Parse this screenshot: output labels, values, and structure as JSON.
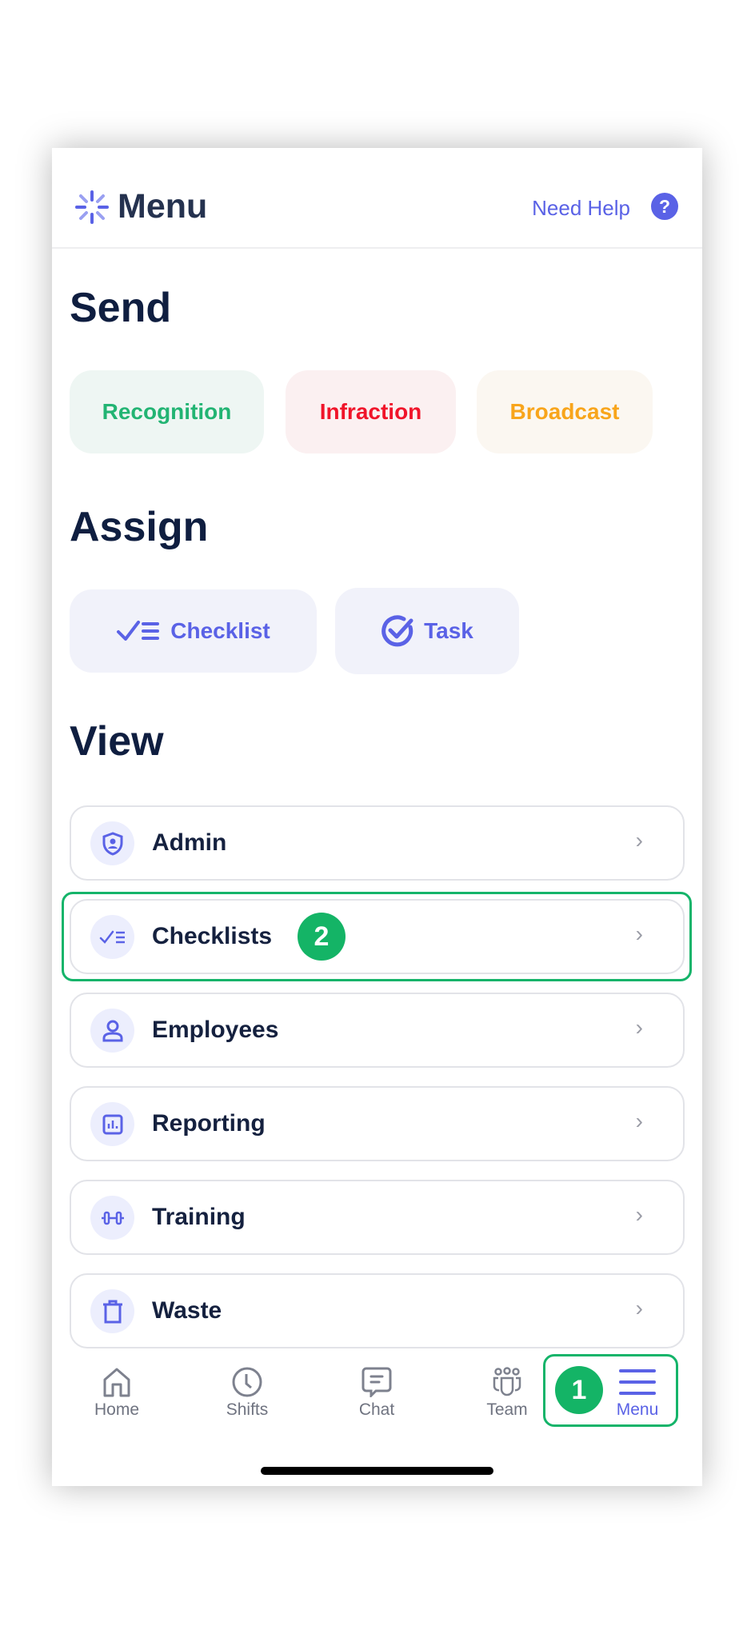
{
  "header": {
    "title": "Menu",
    "help_label": "Need Help",
    "help_icon": "?"
  },
  "send": {
    "heading": "Send",
    "buttons": [
      {
        "label": "Recognition",
        "color": "#22b473"
      },
      {
        "label": "Infraction",
        "color": "#f0142a"
      },
      {
        "label": "Broadcast",
        "color": "#f8a51b"
      }
    ]
  },
  "assign": {
    "heading": "Assign",
    "buttons": [
      {
        "label": "Checklist",
        "icon": "checklist-icon"
      },
      {
        "label": "Task",
        "icon": "check-circle-icon"
      }
    ]
  },
  "view": {
    "heading": "View",
    "items": [
      {
        "label": "Admin",
        "icon": "shield-user-icon"
      },
      {
        "label": "Checklists",
        "icon": "checklist-icon"
      },
      {
        "label": "Employees",
        "icon": "user-icon"
      },
      {
        "label": "Reporting",
        "icon": "chart-icon"
      },
      {
        "label": "Training",
        "icon": "dumbbell-icon"
      },
      {
        "label": "Waste",
        "icon": "trash-icon"
      }
    ]
  },
  "annotations": {
    "step1": "1",
    "step2": "2",
    "highlight_color": "#14b466"
  },
  "nav": {
    "items": [
      {
        "label": "Home"
      },
      {
        "label": "Shifts"
      },
      {
        "label": "Chat"
      },
      {
        "label": "Team"
      },
      {
        "label": "Menu",
        "active": true
      }
    ]
  },
  "colors": {
    "accent": "#5a62e6",
    "text": "#15213f"
  }
}
